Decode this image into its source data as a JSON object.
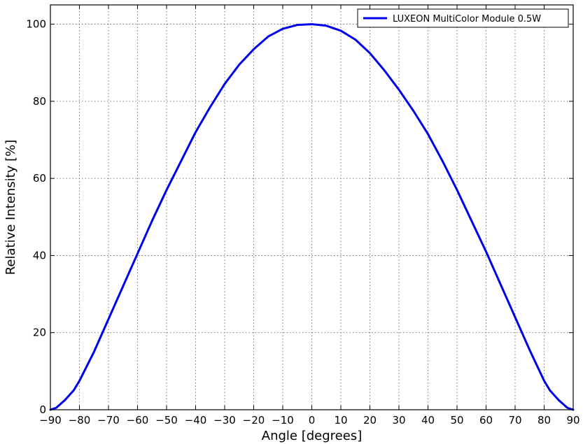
{
  "chart_data": {
    "type": "line",
    "title": "",
    "xlabel": "Angle [degrees]",
    "ylabel": "Relative Intensity [%]",
    "xlim": [
      -90,
      90
    ],
    "ylim": [
      0,
      105
    ],
    "xticks": [
      -90,
      -80,
      -70,
      -60,
      -50,
      -40,
      -30,
      -20,
      -10,
      0,
      10,
      20,
      30,
      40,
      50,
      60,
      70,
      80,
      90
    ],
    "xtick_labels": [
      "−90",
      "−80",
      "−70",
      "−60",
      "−50",
      "−40",
      "−30",
      "−20",
      "−10",
      "0",
      "10",
      "20",
      "30",
      "40",
      "50",
      "60",
      "70",
      "80",
      "90"
    ],
    "yticks": [
      0,
      20,
      40,
      60,
      80,
      100
    ],
    "ytick_labels": [
      "0",
      "20",
      "40",
      "60",
      "80",
      "100"
    ],
    "grid": true,
    "legend_position": "top-right",
    "series": [
      {
        "name": "LUXEON MultiColor Module 0.5W",
        "color": "#0000ee",
        "x": [
          -90,
          -88,
          -85,
          -82,
          -80,
          -75,
          -70,
          -65,
          -60,
          -55,
          -50,
          -45,
          -40,
          -35,
          -30,
          -25,
          -20,
          -15,
          -10,
          -5,
          0,
          5,
          10,
          15,
          20,
          25,
          30,
          35,
          40,
          45,
          50,
          55,
          60,
          65,
          70,
          75,
          80,
          82,
          85,
          88,
          90
        ],
        "y": [
          0,
          0.5,
          2.5,
          5,
          7.5,
          15,
          23.5,
          32,
          40.5,
          49,
          57,
          64.5,
          72,
          78.5,
          84.5,
          89.5,
          93.5,
          96.8,
          98.8,
          99.8,
          100,
          99.6,
          98.3,
          96,
          92.5,
          88,
          83,
          77.5,
          71.5,
          64.5,
          57,
          49,
          41,
          32.5,
          24,
          15.5,
          7.5,
          5,
          2.5,
          0.5,
          0
        ]
      }
    ]
  }
}
